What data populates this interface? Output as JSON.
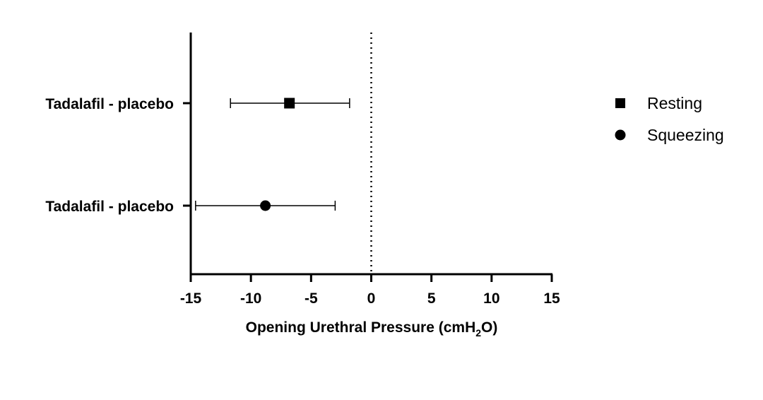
{
  "chart_data": {
    "type": "scatter",
    "subtype": "forest-plot",
    "title": "",
    "xlabel_parts": [
      "Opening Urethral Pressure (cmH",
      "2",
      "O)"
    ],
    "xlim": [
      -15,
      15
    ],
    "xticks": [
      "-15",
      "-10",
      "-5",
      "0",
      "5",
      "10",
      "15"
    ],
    "xtick_values": [
      -15,
      -10,
      -5,
      0,
      5,
      10,
      15
    ],
    "reference_line": 0,
    "grid": false,
    "legend_position": "right",
    "rows": [
      {
        "label": "Tadalafil - placebo",
        "series": "Resting",
        "estimate": -6.8,
        "ci_low": -11.7,
        "ci_high": -1.8
      },
      {
        "label": "Tadalafil - placebo",
        "series": "Squeezing",
        "estimate": -8.8,
        "ci_low": -14.6,
        "ci_high": -3.0
      }
    ],
    "series": [
      {
        "name": "Resting",
        "marker": "square",
        "color": "#000000"
      },
      {
        "name": "Squeezing",
        "marker": "circle",
        "color": "#000000"
      }
    ]
  }
}
